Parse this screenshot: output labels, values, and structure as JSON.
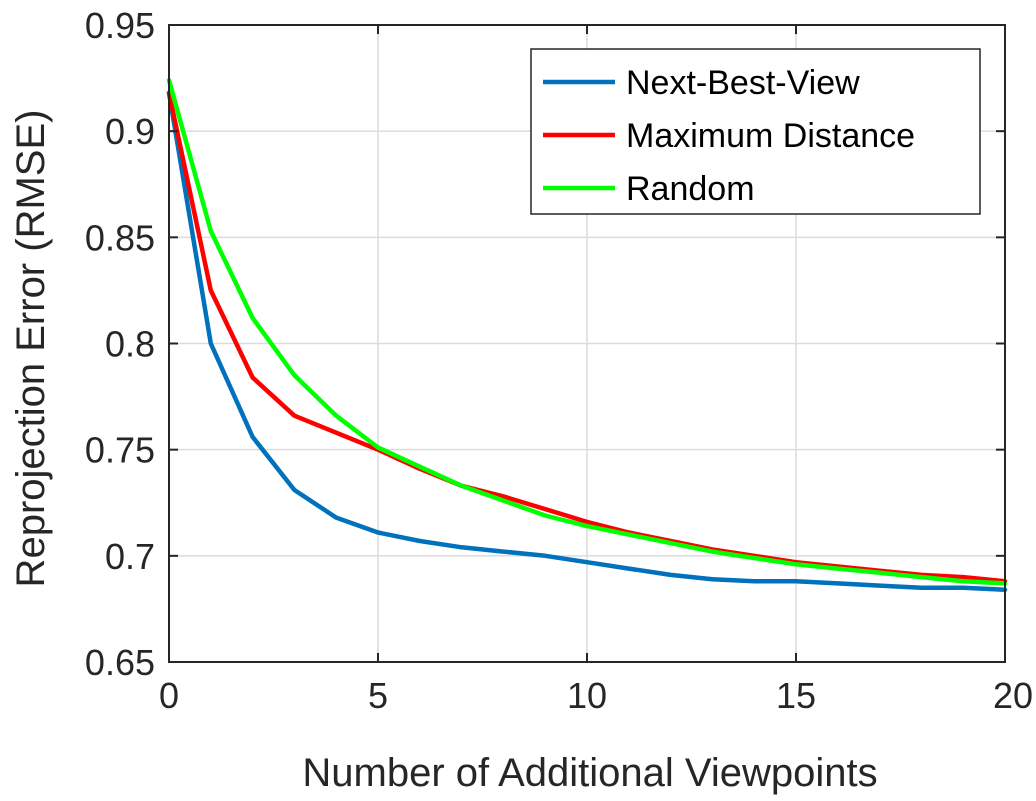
{
  "chart_data": {
    "type": "line",
    "title": "",
    "xlabel": "Number of Additional Viewpoints",
    "ylabel": "Reprojection Error (RMSE)",
    "xlim": [
      0,
      20
    ],
    "ylim": [
      0.65,
      0.95
    ],
    "xticks": [
      0,
      5,
      10,
      15,
      20
    ],
    "xtick_labels": [
      "0",
      "5",
      "10",
      "15",
      "20"
    ],
    "yticks": [
      0.65,
      0.7,
      0.75,
      0.8,
      0.85,
      0.9,
      0.95
    ],
    "ytick_labels": [
      "0.65",
      "0.7",
      "0.75",
      "0.8",
      "0.85",
      "0.9",
      "0.95"
    ],
    "grid": true,
    "legend_position": "top-right",
    "x": [
      0,
      1,
      2,
      3,
      4,
      5,
      6,
      7,
      8,
      9,
      10,
      11,
      12,
      13,
      14,
      15,
      16,
      17,
      18,
      19,
      20
    ],
    "series": [
      {
        "name": "Next-Best-View",
        "color": "#0072BD",
        "values": [
          0.918,
          0.8,
          0.756,
          0.731,
          0.718,
          0.711,
          0.707,
          0.704,
          0.702,
          0.7,
          0.697,
          0.694,
          0.691,
          0.689,
          0.688,
          0.688,
          0.687,
          0.686,
          0.685,
          0.685,
          0.684
        ]
      },
      {
        "name": "Maximum Distance",
        "color": "#FF0000",
        "values": [
          0.918,
          0.825,
          0.784,
          0.766,
          0.758,
          0.75,
          0.741,
          0.733,
          0.728,
          0.722,
          0.716,
          0.711,
          0.707,
          0.703,
          0.7,
          0.697,
          0.695,
          0.693,
          0.691,
          0.69,
          0.688
        ]
      },
      {
        "name": "Random",
        "color": "#00FF00",
        "values": [
          0.924,
          0.853,
          0.812,
          0.785,
          0.766,
          0.751,
          0.742,
          0.733,
          0.726,
          0.719,
          0.714,
          0.71,
          0.706,
          0.702,
          0.699,
          0.696,
          0.694,
          0.692,
          0.69,
          0.688,
          0.687
        ]
      }
    ]
  }
}
